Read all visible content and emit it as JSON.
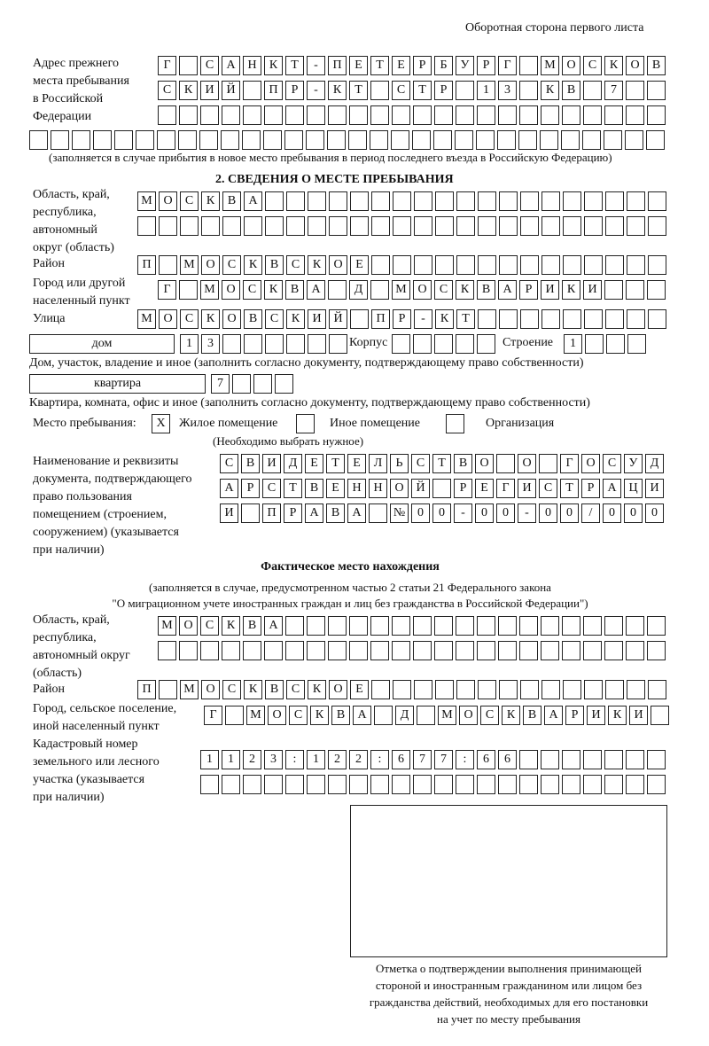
{
  "header": "Оборотная сторона первого листа",
  "prev_address": {
    "label": [
      "Адрес прежнего",
      "места пребывания",
      "в Российской",
      "Федерации"
    ],
    "rows": [
      [
        "Г",
        "",
        "С",
        "А",
        "Н",
        "К",
        "Т",
        "-",
        "П",
        "Е",
        "Т",
        "Е",
        "Р",
        "Б",
        "У",
        "Р",
        "Г",
        "",
        "М",
        "О",
        "С",
        "К",
        "О",
        "В"
      ],
      [
        "С",
        "К",
        "И",
        "Й",
        "",
        "П",
        "Р",
        "-",
        "К",
        "Т",
        "",
        "С",
        "Т",
        "Р",
        "",
        "1",
        "3",
        "",
        "К",
        "В",
        "",
        "7",
        "",
        ""
      ],
      [
        "",
        "",
        "",
        "",
        "",
        "",
        "",
        "",
        "",
        "",
        "",
        "",
        "",
        "",
        "",
        "",
        "",
        "",
        "",
        "",
        "",
        "",
        "",
        ""
      ],
      [
        "",
        "",
        "",
        "",
        "",
        "",
        "",
        "",
        "",
        "",
        "",
        "",
        "",
        "",
        "",
        "",
        "",
        "",
        "",
        "",
        "",
        "",
        "",
        "",
        "",
        "",
        "",
        "",
        "",
        ""
      ]
    ],
    "note": "(заполняется в случае прибытия в новое место пребывания в период последнего въезда в Российскую Федерацию)"
  },
  "section2": {
    "title": "2. СВЕДЕНИЯ О МЕСТЕ ПРЕБЫВАНИЯ",
    "region_label": [
      "Область, край,",
      "республика,",
      "автономный",
      "округ (область)"
    ],
    "region_rows": [
      [
        "М",
        "О",
        "С",
        "К",
        "В",
        "А",
        "",
        "",
        "",
        "",
        "",
        "",
        "",
        "",
        "",
        "",
        "",
        "",
        "",
        "",
        "",
        "",
        "",
        "",
        ""
      ],
      [
        "",
        "",
        "",
        "",
        "",
        "",
        "",
        "",
        "",
        "",
        "",
        "",
        "",
        "",
        "",
        "",
        "",
        "",
        "",
        "",
        "",
        "",
        "",
        "",
        ""
      ]
    ],
    "district_label": "Район",
    "district": [
      "П",
      "",
      "М",
      "О",
      "С",
      "К",
      "В",
      "С",
      "К",
      "О",
      "Е",
      "",
      "",
      "",
      "",
      "",
      "",
      "",
      "",
      "",
      "",
      "",
      "",
      "",
      ""
    ],
    "city_label": [
      "Город или другой",
      "населенный пункт"
    ],
    "city": [
      "Г",
      "",
      "М",
      "О",
      "С",
      "К",
      "В",
      "А",
      "",
      "Д",
      "",
      "М",
      "О",
      "С",
      "К",
      "В",
      "А",
      "Р",
      "И",
      "К",
      "И",
      "",
      "",
      ""
    ],
    "street_label": "Улица",
    "street": [
      "М",
      "О",
      "С",
      "К",
      "О",
      "В",
      "С",
      "К",
      "И",
      "Й",
      "",
      "П",
      "Р",
      "-",
      "К",
      "Т",
      "",
      "",
      "",
      "",
      "",
      "",
      "",
      "",
      ""
    ],
    "house_type": "дом",
    "house": [
      "1",
      "3",
      "",
      "",
      "",
      "",
      "",
      ""
    ],
    "korpus_label": "Корпус",
    "korpus": [
      "",
      "",
      "",
      "",
      ""
    ],
    "building_label": "Строение",
    "building": [
      "1",
      "",
      "",
      ""
    ],
    "house_note": "Дом, участок, владение и иное (заполнить согласно документу, подтверждающему право собственности)",
    "apt_type": "квартира",
    "apt": [
      "7",
      "",
      "",
      ""
    ],
    "apt_note": "Квартира, комната, офис и иное (заполнить согласно документу, подтверждающему право собственности)",
    "stay_label": "Место пребывания:",
    "stay_options": [
      {
        "label": "Жилое помещение",
        "mark": "X"
      },
      {
        "label": "Иное помещение",
        "mark": ""
      },
      {
        "label": "Организация",
        "mark": ""
      }
    ],
    "stay_note": "(Необходимо выбрать нужное)",
    "doc_label": [
      "Наименование и реквизиты",
      "документа, подтверждающего",
      "право пользования",
      "помещением (строением,",
      "сооружением) (указывается",
      "при наличии)"
    ],
    "doc_rows": [
      [
        "С",
        "В",
        "И",
        "Д",
        "Е",
        "Т",
        "Е",
        "Л",
        "Ь",
        "С",
        "Т",
        "В",
        "О",
        "",
        "О",
        "",
        "Г",
        "О",
        "С",
        "У",
        "Д"
      ],
      [
        "А",
        "Р",
        "С",
        "Т",
        "В",
        "Е",
        "Н",
        "Н",
        "О",
        "Й",
        "",
        "Р",
        "Е",
        "Г",
        "И",
        "С",
        "Т",
        "Р",
        "А",
        "Ц",
        "И"
      ],
      [
        "И",
        "",
        "П",
        "Р",
        "А",
        "В",
        "А",
        "",
        "№",
        "0",
        "0",
        "-",
        "0",
        "0",
        "-",
        "0",
        "0",
        "/",
        "0",
        "0",
        "0"
      ]
    ]
  },
  "actual": {
    "title": "Фактическое место нахождения",
    "subtitle": [
      "(заполняется в случае, предусмотренном частью 2 статьи 21 Федерального закона",
      "\"О миграционном учете иностранных граждан и лиц без гражданства в Российской Федерации\")"
    ],
    "region_label": [
      "Область, край,",
      "республика,",
      "автономный округ",
      "(область)"
    ],
    "region_rows": [
      [
        "М",
        "О",
        "С",
        "К",
        "В",
        "А",
        "",
        "",
        "",
        "",
        "",
        "",
        "",
        "",
        "",
        "",
        "",
        "",
        "",
        "",
        "",
        "",
        "",
        ""
      ],
      [
        "",
        "",
        "",
        "",
        "",
        "",
        "",
        "",
        "",
        "",
        "",
        "",
        "",
        "",
        "",
        "",
        "",
        "",
        "",
        "",
        "",
        "",
        "",
        ""
      ]
    ],
    "district_label": "Район",
    "district": [
      "П",
      "",
      "М",
      "О",
      "С",
      "К",
      "В",
      "С",
      "К",
      "О",
      "Е",
      "",
      "",
      "",
      "",
      "",
      "",
      "",
      "",
      "",
      "",
      "",
      "",
      "",
      ""
    ],
    "city_label": [
      "Город, сельское поселение,",
      "иной населенный пункт"
    ],
    "city": [
      "Г",
      "",
      "М",
      "О",
      "С",
      "К",
      "В",
      "А",
      "",
      "Д",
      "",
      "М",
      "О",
      "С",
      "К",
      "В",
      "А",
      "Р",
      "И",
      "К",
      "И",
      ""
    ],
    "cadastre_label": [
      "Кадастровый номер",
      "земельного или лесного",
      "участка (указывается",
      "при наличии)"
    ],
    "cadastre_rows": [
      [
        "1",
        "1",
        "2",
        "3",
        ":",
        "1",
        "2",
        "2",
        ":",
        "6",
        "7",
        "7",
        ":",
        "6",
        "6",
        "",
        "",
        "",
        "",
        "",
        "",
        ""
      ],
      [
        "",
        "",
        "",
        "",
        "",
        "",
        "",
        "",
        "",
        "",
        "",
        "",
        "",
        "",
        "",
        "",
        "",
        "",
        "",
        "",
        "",
        ""
      ]
    ]
  },
  "confirmation_caption": [
    "Отметка о подтверждении выполнения принимающей",
    "стороной и иностранным гражданином или лицом без",
    "гражданства действий, необходимых для его постановки",
    "на учет по месту пребывания"
  ]
}
